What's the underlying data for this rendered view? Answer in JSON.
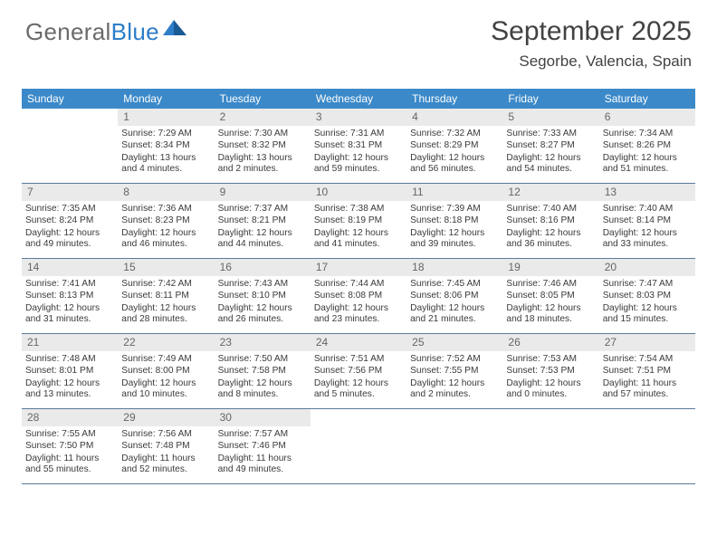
{
  "logo": {
    "part1": "General",
    "part2": "Blue"
  },
  "title": {
    "month": "September 2025",
    "location": "Segorbe, Valencia, Spain"
  },
  "colors": {
    "header_bg": "#3b89c9",
    "header_text": "#ffffff",
    "daynum_bg": "#eaeaea",
    "daynum_text": "#666666",
    "rule": "#5a7a9a",
    "logo_gray": "#6b6b6b",
    "logo_blue": "#2d7dc9",
    "text": "#3a3a3a"
  },
  "dayNames": [
    "Sunday",
    "Monday",
    "Tuesday",
    "Wednesday",
    "Thursday",
    "Friday",
    "Saturday"
  ],
  "grid": [
    [
      {
        "blank": true
      },
      {
        "day": 1,
        "sunrise": "Sunrise: 7:29 AM",
        "sunset": "Sunset: 8:34 PM",
        "daylight": "Daylight: 13 hours and 4 minutes."
      },
      {
        "day": 2,
        "sunrise": "Sunrise: 7:30 AM",
        "sunset": "Sunset: 8:32 PM",
        "daylight": "Daylight: 13 hours and 2 minutes."
      },
      {
        "day": 3,
        "sunrise": "Sunrise: 7:31 AM",
        "sunset": "Sunset: 8:31 PM",
        "daylight": "Daylight: 12 hours and 59 minutes."
      },
      {
        "day": 4,
        "sunrise": "Sunrise: 7:32 AM",
        "sunset": "Sunset: 8:29 PM",
        "daylight": "Daylight: 12 hours and 56 minutes."
      },
      {
        "day": 5,
        "sunrise": "Sunrise: 7:33 AM",
        "sunset": "Sunset: 8:27 PM",
        "daylight": "Daylight: 12 hours and 54 minutes."
      },
      {
        "day": 6,
        "sunrise": "Sunrise: 7:34 AM",
        "sunset": "Sunset: 8:26 PM",
        "daylight": "Daylight: 12 hours and 51 minutes."
      }
    ],
    [
      {
        "day": 7,
        "sunrise": "Sunrise: 7:35 AM",
        "sunset": "Sunset: 8:24 PM",
        "daylight": "Daylight: 12 hours and 49 minutes."
      },
      {
        "day": 8,
        "sunrise": "Sunrise: 7:36 AM",
        "sunset": "Sunset: 8:23 PM",
        "daylight": "Daylight: 12 hours and 46 minutes."
      },
      {
        "day": 9,
        "sunrise": "Sunrise: 7:37 AM",
        "sunset": "Sunset: 8:21 PM",
        "daylight": "Daylight: 12 hours and 44 minutes."
      },
      {
        "day": 10,
        "sunrise": "Sunrise: 7:38 AM",
        "sunset": "Sunset: 8:19 PM",
        "daylight": "Daylight: 12 hours and 41 minutes."
      },
      {
        "day": 11,
        "sunrise": "Sunrise: 7:39 AM",
        "sunset": "Sunset: 8:18 PM",
        "daylight": "Daylight: 12 hours and 39 minutes."
      },
      {
        "day": 12,
        "sunrise": "Sunrise: 7:40 AM",
        "sunset": "Sunset: 8:16 PM",
        "daylight": "Daylight: 12 hours and 36 minutes."
      },
      {
        "day": 13,
        "sunrise": "Sunrise: 7:40 AM",
        "sunset": "Sunset: 8:14 PM",
        "daylight": "Daylight: 12 hours and 33 minutes."
      }
    ],
    [
      {
        "day": 14,
        "sunrise": "Sunrise: 7:41 AM",
        "sunset": "Sunset: 8:13 PM",
        "daylight": "Daylight: 12 hours and 31 minutes."
      },
      {
        "day": 15,
        "sunrise": "Sunrise: 7:42 AM",
        "sunset": "Sunset: 8:11 PM",
        "daylight": "Daylight: 12 hours and 28 minutes."
      },
      {
        "day": 16,
        "sunrise": "Sunrise: 7:43 AM",
        "sunset": "Sunset: 8:10 PM",
        "daylight": "Daylight: 12 hours and 26 minutes."
      },
      {
        "day": 17,
        "sunrise": "Sunrise: 7:44 AM",
        "sunset": "Sunset: 8:08 PM",
        "daylight": "Daylight: 12 hours and 23 minutes."
      },
      {
        "day": 18,
        "sunrise": "Sunrise: 7:45 AM",
        "sunset": "Sunset: 8:06 PM",
        "daylight": "Daylight: 12 hours and 21 minutes."
      },
      {
        "day": 19,
        "sunrise": "Sunrise: 7:46 AM",
        "sunset": "Sunset: 8:05 PM",
        "daylight": "Daylight: 12 hours and 18 minutes."
      },
      {
        "day": 20,
        "sunrise": "Sunrise: 7:47 AM",
        "sunset": "Sunset: 8:03 PM",
        "daylight": "Daylight: 12 hours and 15 minutes."
      }
    ],
    [
      {
        "day": 21,
        "sunrise": "Sunrise: 7:48 AM",
        "sunset": "Sunset: 8:01 PM",
        "daylight": "Daylight: 12 hours and 13 minutes."
      },
      {
        "day": 22,
        "sunrise": "Sunrise: 7:49 AM",
        "sunset": "Sunset: 8:00 PM",
        "daylight": "Daylight: 12 hours and 10 minutes."
      },
      {
        "day": 23,
        "sunrise": "Sunrise: 7:50 AM",
        "sunset": "Sunset: 7:58 PM",
        "daylight": "Daylight: 12 hours and 8 minutes."
      },
      {
        "day": 24,
        "sunrise": "Sunrise: 7:51 AM",
        "sunset": "Sunset: 7:56 PM",
        "daylight": "Daylight: 12 hours and 5 minutes."
      },
      {
        "day": 25,
        "sunrise": "Sunrise: 7:52 AM",
        "sunset": "Sunset: 7:55 PM",
        "daylight": "Daylight: 12 hours and 2 minutes."
      },
      {
        "day": 26,
        "sunrise": "Sunrise: 7:53 AM",
        "sunset": "Sunset: 7:53 PM",
        "daylight": "Daylight: 12 hours and 0 minutes."
      },
      {
        "day": 27,
        "sunrise": "Sunrise: 7:54 AM",
        "sunset": "Sunset: 7:51 PM",
        "daylight": "Daylight: 11 hours and 57 minutes."
      }
    ],
    [
      {
        "day": 28,
        "sunrise": "Sunrise: 7:55 AM",
        "sunset": "Sunset: 7:50 PM",
        "daylight": "Daylight: 11 hours and 55 minutes."
      },
      {
        "day": 29,
        "sunrise": "Sunrise: 7:56 AM",
        "sunset": "Sunset: 7:48 PM",
        "daylight": "Daylight: 11 hours and 52 minutes."
      },
      {
        "day": 30,
        "sunrise": "Sunrise: 7:57 AM",
        "sunset": "Sunset: 7:46 PM",
        "daylight": "Daylight: 11 hours and 49 minutes."
      },
      {
        "blank": true
      },
      {
        "blank": true
      },
      {
        "blank": true
      },
      {
        "blank": true
      }
    ]
  ]
}
